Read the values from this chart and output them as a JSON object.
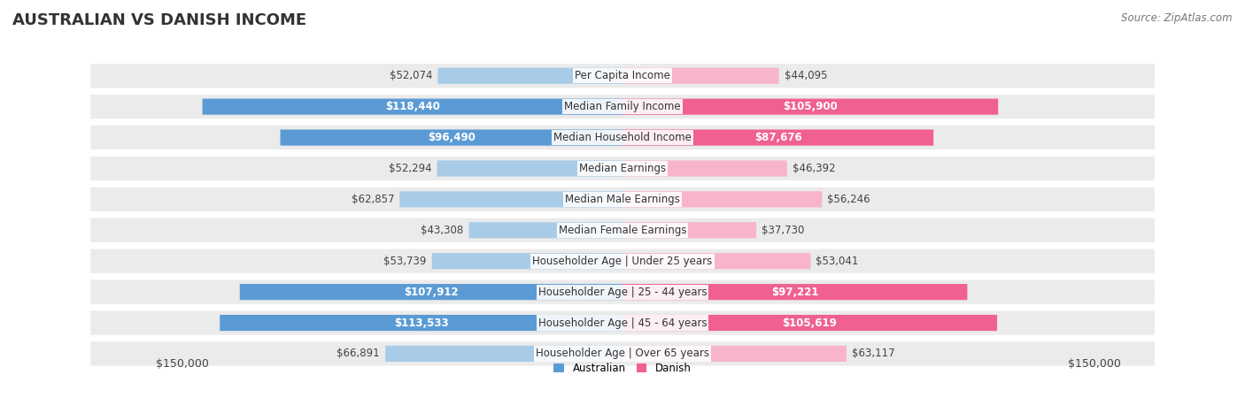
{
  "title": "AUSTRALIAN VS DANISH INCOME",
  "source": "Source: ZipAtlas.com",
  "categories": [
    "Per Capita Income",
    "Median Family Income",
    "Median Household Income",
    "Median Earnings",
    "Median Male Earnings",
    "Median Female Earnings",
    "Householder Age | Under 25 years",
    "Householder Age | 25 - 44 years",
    "Householder Age | 45 - 64 years",
    "Householder Age | Over 65 years"
  ],
  "australian_values": [
    52074,
    118440,
    96490,
    52294,
    62857,
    43308,
    53739,
    107912,
    113533,
    66891
  ],
  "danish_values": [
    44095,
    105900,
    87676,
    46392,
    56246,
    37730,
    53041,
    97221,
    105619,
    63117
  ],
  "aus_large_threshold": 80000,
  "dan_large_threshold": 80000,
  "australian_color_light": "#a8cce8",
  "australian_color_dark": "#5b9bd5",
  "danish_color_light": "#f8b4cc",
  "danish_color_dark": "#f06090",
  "max_value": 150000,
  "row_bg_color": "#ebebeb",
  "title_color": "#333333",
  "source_color": "#777777",
  "label_outside_color": "#444444",
  "title_fontsize": 13,
  "source_fontsize": 8.5,
  "bar_label_fontsize": 8.5,
  "category_fontsize": 8.5,
  "axis_label_fontsize": 9
}
